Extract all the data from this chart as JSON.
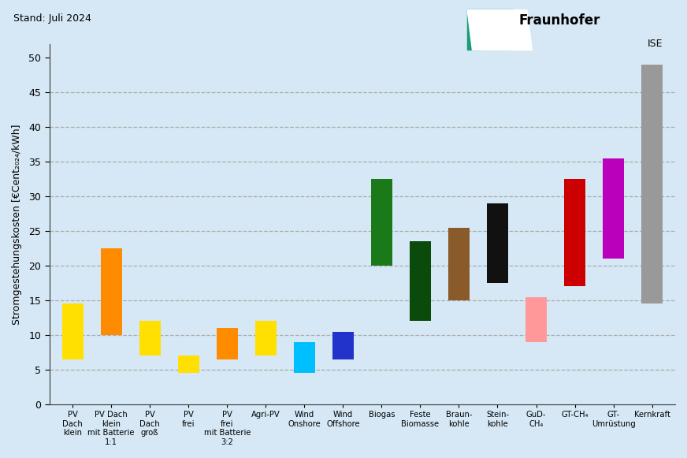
{
  "categories": [
    "PV\nDach\nklein",
    "PV Dach\nklein\nmit Batterie\n1:1",
    "PV\nDach\ngroß",
    "PV\nfrei",
    "PV\nfrei\nmit Batterie\n3:2",
    "Agri-PV",
    "Wind\nOnshore",
    "Wind\nOffshore",
    "Biogas",
    "Feste\nBiomasse",
    "Braun-\nkohle",
    "Stein-\nkohle",
    "GuD-\nCH₄",
    "GT-CH₄",
    "GT-\nUmrüstung",
    "Kernkraft"
  ],
  "bar_bottom": [
    6.5,
    10.0,
    7.0,
    4.5,
    6.5,
    7.0,
    4.5,
    6.5,
    20.0,
    12.0,
    15.0,
    17.5,
    9.0,
    17.0,
    21.0,
    14.5
  ],
  "bar_top": [
    14.5,
    22.5,
    12.0,
    7.0,
    11.0,
    12.0,
    9.0,
    10.5,
    32.5,
    23.5,
    25.5,
    29.0,
    15.5,
    32.5,
    35.5,
    49.0
  ],
  "bar_colors": [
    "#FFE000",
    "#FF8C00",
    "#FFE000",
    "#FFE000",
    "#FF8C00",
    "#FFE000",
    "#00BFFF",
    "#2233CC",
    "#1A7A1A",
    "#0A4A0A",
    "#8B5A2B",
    "#111111",
    "#FF9999",
    "#CC0000",
    "#BB00BB",
    "#999999"
  ],
  "background_color": "#D6E8F5",
  "ylabel": "Stromgestehungskosten [€Cent₂₀₂₄/kWh]",
  "ylim": [
    0,
    52
  ],
  "yticks": [
    0,
    5,
    10,
    15,
    20,
    25,
    30,
    35,
    40,
    45,
    50
  ],
  "grid_yticks": [
    5,
    10,
    15,
    20,
    25,
    30,
    35,
    40,
    45
  ],
  "title_text": "Stand: Juli 2024",
  "grid_color": "#aaaaaa",
  "fraunhofer_green": "#1A9E78",
  "fraunhofer_dark": "#0D6B50"
}
